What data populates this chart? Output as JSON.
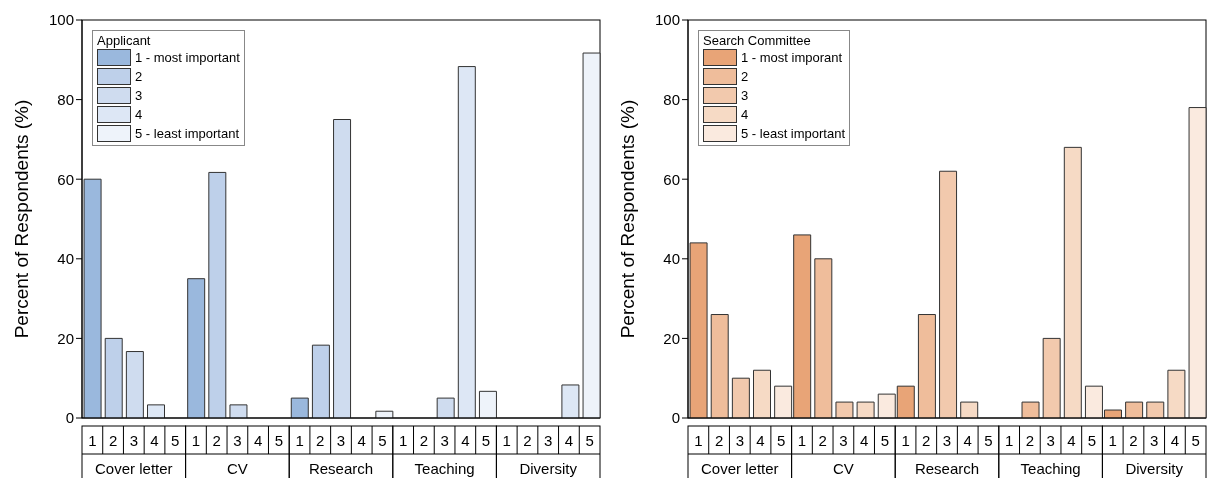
{
  "chart_data": [
    {
      "type": "bar",
      "categories": [
        "Cover letter",
        "CV",
        "Research",
        "Teaching",
        "Diversity"
      ],
      "ylabel": "Percent of Respondents (%)",
      "ylim": [
        0,
        100
      ],
      "yticks": [
        0,
        20,
        40,
        60,
        80,
        100
      ],
      "legend": "top left",
      "legend_title": "Applicant",
      "series": [
        {
          "name": "1 - most important",
          "color": "#9ab8dd",
          "values": [
            60,
            35,
            5,
            0,
            0
          ]
        },
        {
          "name": "2",
          "color": "#bed0ea",
          "values": [
            20,
            61.7,
            18.3,
            0,
            0
          ]
        },
        {
          "name": "3",
          "color": "#cfdcef",
          "values": [
            16.7,
            3.3,
            75,
            5,
            0
          ]
        },
        {
          "name": "4",
          "color": "#dde7f5",
          "values": [
            3.3,
            0,
            0,
            88.3,
            8.3
          ]
        },
        {
          "name": "5 - least important",
          "color": "#eef3fa",
          "values": [
            0,
            0,
            1.7,
            6.7,
            91.7
          ]
        }
      ],
      "annotations": [
        "1",
        "2",
        "3",
        "4",
        "5",
        "1",
        "2",
        "3",
        "4",
        "5",
        "1",
        "2",
        "3",
        "4",
        "5",
        "1",
        "2",
        "3",
        "4",
        "5",
        "1",
        "2",
        "3",
        "4",
        "5"
      ]
    },
    {
      "type": "bar",
      "categories": [
        "Cover letter",
        "CV",
        "Research",
        "Teaching",
        "Diversity"
      ],
      "ylabel": "Percent of Respondents (%)",
      "ylim": [
        0,
        100
      ],
      "yticks": [
        0,
        20,
        40,
        60,
        80,
        100
      ],
      "legend": "top left",
      "legend_title": "Search Committee",
      "series": [
        {
          "name": "1 - most imporant",
          "color": "#e8a477",
          "values": [
            44,
            46,
            8,
            0,
            2
          ]
        },
        {
          "name": "2",
          "color": "#efbd9b",
          "values": [
            26,
            40,
            26,
            4,
            4
          ]
        },
        {
          "name": "3",
          "color": "#f2c9ad",
          "values": [
            10,
            4,
            62,
            20,
            4
          ]
        },
        {
          "name": "4",
          "color": "#f6dac5",
          "values": [
            12,
            4,
            4,
            68,
            12
          ]
        },
        {
          "name": "5 - least important",
          "color": "#faeadf",
          "values": [
            8,
            6,
            0,
            8,
            78
          ]
        }
      ],
      "annotations": [
        "1",
        "2",
        "3",
        "4",
        "5",
        "1",
        "2",
        "3",
        "4",
        "5",
        "1",
        "2",
        "3",
        "4",
        "5",
        "1",
        "2",
        "3",
        "4",
        "5",
        "1",
        "2",
        "3",
        "4",
        "5"
      ]
    }
  ]
}
